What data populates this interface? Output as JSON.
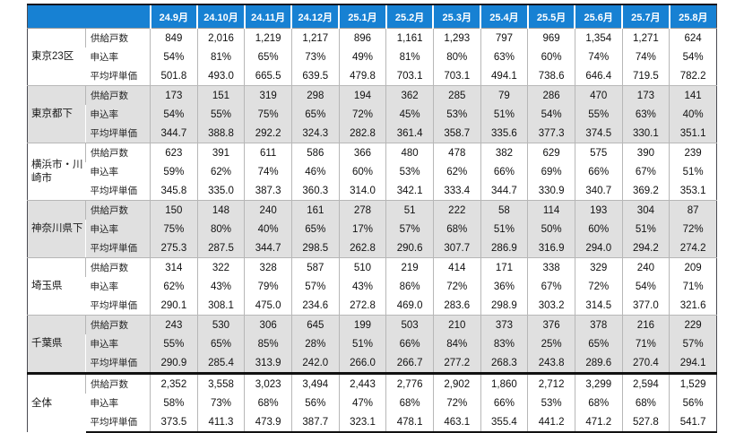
{
  "colors": {
    "header_bg": "#1781d3",
    "header_text": "#ffffff",
    "shaded_row_bg": "#e0e0e0",
    "border_light": "#b7b7b7",
    "border_dark": "#15151f"
  },
  "chart_data": {
    "type": "table",
    "title": "",
    "corner_label": "",
    "columns": [
      "24.9月",
      "24.10月",
      "24.11月",
      "24.12月",
      "25.1月",
      "25.2月",
      "25.3月",
      "25.4月",
      "25.5月",
      "25.6月",
      "25.7月",
      "25.8月"
    ],
    "metric_labels": [
      "供給戸数",
      "申込率",
      "平均坪単価"
    ],
    "row_groups": [
      {
        "region": "東京23区",
        "shaded": false,
        "total": false,
        "metrics": [
          {
            "label": "供給戸数",
            "values": [
              "849",
              "2,016",
              "1,219",
              "1,217",
              "896",
              "1,161",
              "1,293",
              "797",
              "969",
              "1,354",
              "1,271",
              "624"
            ]
          },
          {
            "label": "申込率",
            "values": [
              "54%",
              "81%",
              "65%",
              "73%",
              "49%",
              "81%",
              "80%",
              "63%",
              "60%",
              "74%",
              "74%",
              "54%"
            ]
          },
          {
            "label": "平均坪単価",
            "values": [
              "501.8",
              "493.0",
              "665.5",
              "639.5",
              "479.8",
              "703.1",
              "703.1",
              "494.1",
              "738.6",
              "646.4",
              "719.5",
              "782.2"
            ]
          }
        ]
      },
      {
        "region": "東京都下",
        "shaded": true,
        "total": false,
        "metrics": [
          {
            "label": "供給戸数",
            "values": [
              "173",
              "151",
              "319",
              "298",
              "194",
              "362",
              "285",
              "79",
              "286",
              "470",
              "173",
              "141"
            ]
          },
          {
            "label": "申込率",
            "values": [
              "54%",
              "55%",
              "75%",
              "65%",
              "72%",
              "45%",
              "53%",
              "51%",
              "54%",
              "55%",
              "63%",
              "40%"
            ]
          },
          {
            "label": "平均坪単価",
            "values": [
              "344.7",
              "388.8",
              "292.2",
              "324.3",
              "282.8",
              "361.4",
              "358.7",
              "335.6",
              "377.3",
              "374.5",
              "330.1",
              "351.1"
            ]
          }
        ]
      },
      {
        "region": "横浜市・川崎市",
        "shaded": false,
        "total": false,
        "metrics": [
          {
            "label": "供給戸数",
            "values": [
              "623",
              "391",
              "611",
              "586",
              "366",
              "480",
              "478",
              "382",
              "629",
              "575",
              "390",
              "239"
            ]
          },
          {
            "label": "申込率",
            "values": [
              "59%",
              "62%",
              "74%",
              "46%",
              "60%",
              "53%",
              "62%",
              "66%",
              "69%",
              "66%",
              "67%",
              "51%"
            ]
          },
          {
            "label": "平均坪単価",
            "values": [
              "345.8",
              "335.0",
              "387.3",
              "360.3",
              "314.0",
              "342.1",
              "333.4",
              "344.7",
              "330.9",
              "340.7",
              "369.2",
              "353.1"
            ]
          }
        ]
      },
      {
        "region": "神奈川県下",
        "shaded": true,
        "total": false,
        "metrics": [
          {
            "label": "供給戸数",
            "values": [
              "150",
              "148",
              "240",
              "161",
              "278",
              "51",
              "222",
              "58",
              "114",
              "193",
              "304",
              "87"
            ]
          },
          {
            "label": "申込率",
            "values": [
              "75%",
              "80%",
              "40%",
              "65%",
              "17%",
              "57%",
              "68%",
              "51%",
              "50%",
              "60%",
              "51%",
              "72%"
            ]
          },
          {
            "label": "平均坪単価",
            "values": [
              "275.3",
              "287.5",
              "344.7",
              "298.5",
              "262.8",
              "290.6",
              "307.7",
              "286.9",
              "316.9",
              "294.0",
              "294.2",
              "274.2"
            ]
          }
        ]
      },
      {
        "region": "埼玉県",
        "shaded": false,
        "total": false,
        "metrics": [
          {
            "label": "供給戸数",
            "values": [
              "314",
              "322",
              "328",
              "587",
              "510",
              "219",
              "414",
              "171",
              "338",
              "329",
              "240",
              "209"
            ]
          },
          {
            "label": "申込率",
            "values": [
              "62%",
              "43%",
              "79%",
              "57%",
              "43%",
              "86%",
              "72%",
              "36%",
              "67%",
              "72%",
              "54%",
              "71%"
            ]
          },
          {
            "label": "平均坪単価",
            "values": [
              "290.1",
              "308.1",
              "475.0",
              "234.6",
              "272.8",
              "469.0",
              "283.6",
              "298.9",
              "303.2",
              "314.5",
              "377.0",
              "321.6"
            ]
          }
        ]
      },
      {
        "region": "千葉県",
        "shaded": true,
        "total": false,
        "metrics": [
          {
            "label": "供給戸数",
            "values": [
              "243",
              "530",
              "306",
              "645",
              "199",
              "503",
              "210",
              "373",
              "376",
              "378",
              "216",
              "229"
            ]
          },
          {
            "label": "申込率",
            "values": [
              "55%",
              "65%",
              "85%",
              "28%",
              "51%",
              "66%",
              "84%",
              "83%",
              "25%",
              "65%",
              "71%",
              "57%"
            ]
          },
          {
            "label": "平均坪単価",
            "values": [
              "290.9",
              "285.4",
              "313.9",
              "242.0",
              "266.0",
              "266.7",
              "277.2",
              "268.3",
              "243.8",
              "289.6",
              "270.4",
              "294.1"
            ]
          }
        ]
      },
      {
        "region": "全体",
        "shaded": false,
        "total": true,
        "metrics": [
          {
            "label": "供給戸数",
            "values": [
              "2,352",
              "3,558",
              "3,023",
              "3,494",
              "2,443",
              "2,776",
              "2,902",
              "1,860",
              "2,712",
              "3,299",
              "2,594",
              "1,529"
            ]
          },
          {
            "label": "申込率",
            "values": [
              "58%",
              "73%",
              "68%",
              "56%",
              "47%",
              "68%",
              "72%",
              "66%",
              "53%",
              "68%",
              "68%",
              "56%"
            ]
          },
          {
            "label": "平均坪単価",
            "values": [
              "373.5",
              "411.3",
              "473.9",
              "387.7",
              "323.1",
              "478.1",
              "463.1",
              "355.4",
              "441.2",
              "471.2",
              "527.8",
              "541.7"
            ]
          }
        ]
      }
    ]
  }
}
